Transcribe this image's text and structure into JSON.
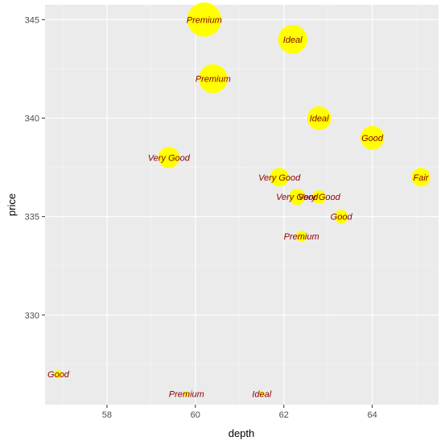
{
  "chart_data": {
    "type": "scatter",
    "xlabel": "depth",
    "ylabel": "price",
    "xlim": [
      56.6,
      65.5
    ],
    "ylim": [
      325.45,
      345.75
    ],
    "x_ticks": [
      58,
      60,
      62,
      64
    ],
    "y_ticks": [
      330,
      335,
      340,
      345
    ],
    "grid": true,
    "point_color": "#ffff00",
    "label_color": "#8b0000",
    "panel_color": "#ebebeb",
    "points": [
      {
        "x": 60.2,
        "y": 345,
        "label": "Premium",
        "size": 6
      },
      {
        "x": 62.2,
        "y": 344,
        "label": "Ideal",
        "size": 5
      },
      {
        "x": 60.4,
        "y": 342,
        "label": "Premium",
        "size": 5
      },
      {
        "x": 62.8,
        "y": 340,
        "label": "Ideal",
        "size": 4
      },
      {
        "x": 64.0,
        "y": 339,
        "label": "Good",
        "size": 4
      },
      {
        "x": 59.4,
        "y": 338,
        "label": "Very Good",
        "size": 3.5
      },
      {
        "x": 61.9,
        "y": 337,
        "label": "Very Good",
        "size": 3
      },
      {
        "x": 65.1,
        "y": 337,
        "label": "Fair",
        "size": 3
      },
      {
        "x": 62.3,
        "y": 336,
        "label": "Very Good",
        "size": 2.5
      },
      {
        "x": 62.8,
        "y": 336,
        "label": "Very Good",
        "size": 2
      },
      {
        "x": 63.3,
        "y": 335,
        "label": "Good",
        "size": 2
      },
      {
        "x": 62.4,
        "y": 334,
        "label": "Premium",
        "size": 1.5
      },
      {
        "x": 56.9,
        "y": 327,
        "label": "Good",
        "size": 1
      },
      {
        "x": 59.8,
        "y": 326,
        "label": "Premium",
        "size": 0.5
      },
      {
        "x": 61.5,
        "y": 326,
        "label": "Ideal",
        "size": 0.5
      }
    ]
  }
}
